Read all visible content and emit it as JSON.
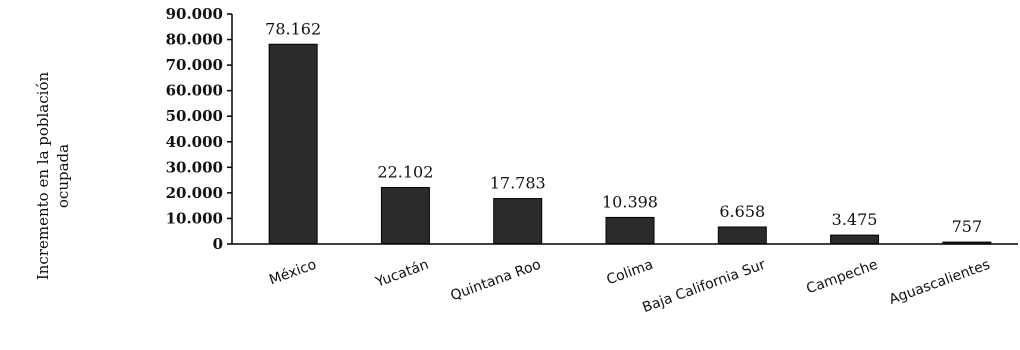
{
  "chart_data": {
    "type": "bar",
    "categories": [
      "México",
      "Yucatán",
      "Quintana Roo",
      "Colima",
      "Baja California Sur",
      "Campeche",
      "Aguascalientes"
    ],
    "values": [
      78162,
      22102,
      17783,
      10398,
      6658,
      3475,
      757
    ],
    "value_labels": [
      "78.162",
      "22.102",
      "17.783",
      "10.398",
      "6.658",
      "3.475",
      "757"
    ],
    "ylabel_lines": [
      "Incremento en la población",
      "ocupada"
    ],
    "ylim": [
      0,
      90000
    ],
    "yticks": [
      0,
      10000,
      20000,
      30000,
      40000,
      50000,
      60000,
      70000,
      80000,
      90000
    ],
    "ytick_labels": [
      "0",
      "10.000",
      "20.000",
      "30.000",
      "40.000",
      "50.000",
      "60.000",
      "70.000",
      "80.000",
      "90.000"
    ],
    "bar_color": "#2b2b2b",
    "grid": false,
    "legend": false
  }
}
